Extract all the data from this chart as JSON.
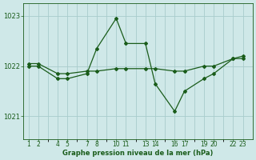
{
  "title": "Graphe pression niveau de la mer (hPa)",
  "bg_color": "#cfe8e8",
  "grid_color": "#a8cccc",
  "line_color": "#1a5c1a",
  "xlim": [
    0.5,
    24.0
  ],
  "ylim": [
    1020.55,
    1023.25
  ],
  "yticks": [
    1021,
    1022,
    1023
  ],
  "xtick_pos": [
    1,
    2,
    4,
    5,
    7,
    8,
    10,
    11,
    13,
    14,
    16,
    17,
    19,
    20,
    22,
    23
  ],
  "xtick_labels": [
    "1",
    "2",
    "4",
    "5",
    "7",
    "8",
    "10",
    "11",
    "13",
    "14",
    "16",
    "17",
    "19",
    "20",
    "22",
    "23"
  ],
  "line1_x": [
    1,
    2,
    4,
    5,
    7,
    8,
    10,
    11,
    13,
    14,
    16,
    17,
    19,
    20,
    22,
    23
  ],
  "line1_y": [
    1022.0,
    1022.0,
    1021.75,
    1021.75,
    1021.85,
    1022.35,
    1022.95,
    1022.45,
    1022.45,
    1021.65,
    1021.1,
    1021.5,
    1021.75,
    1021.85,
    1022.15,
    1022.2
  ],
  "line2_x": [
    1,
    2,
    4,
    5,
    7,
    8,
    10,
    11,
    13,
    14,
    16,
    17,
    19,
    20,
    22,
    23
  ],
  "line2_y": [
    1022.05,
    1022.05,
    1021.85,
    1021.85,
    1021.9,
    1021.9,
    1021.95,
    1021.95,
    1021.95,
    1021.95,
    1021.9,
    1021.9,
    1022.0,
    1022.0,
    1022.15,
    1022.15
  ]
}
